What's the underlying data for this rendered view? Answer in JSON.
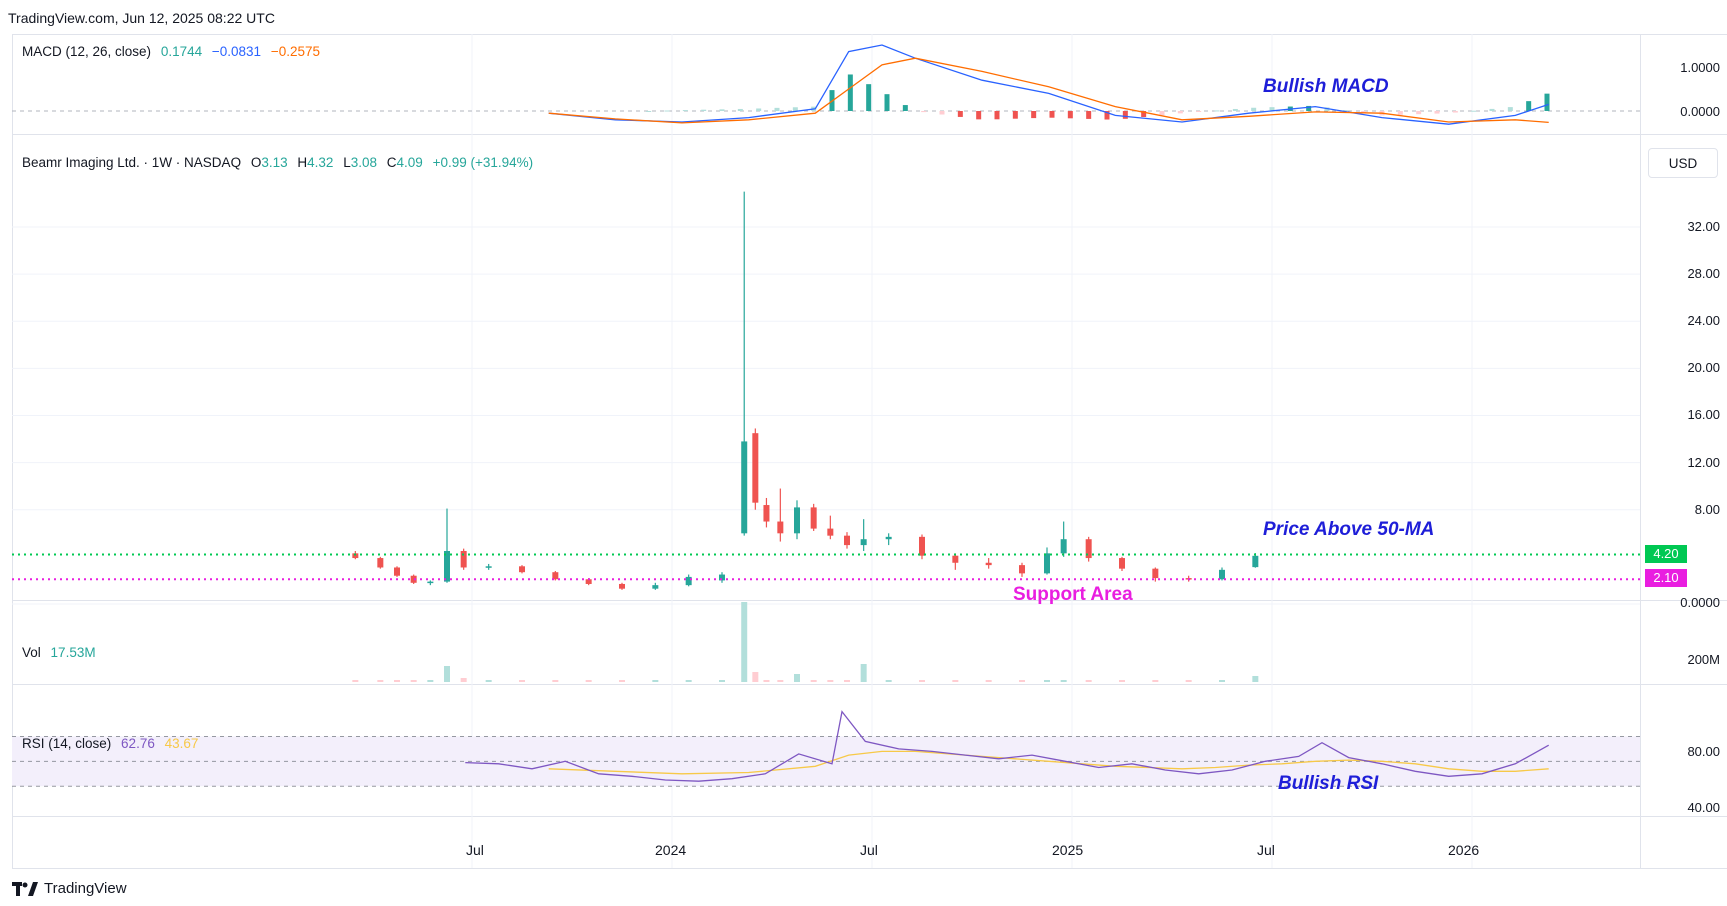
{
  "header": {
    "source": "TradingView.com, Jun 12, 2025 08:22 UTC"
  },
  "footer": {
    "brand": "TradingView",
    "logo_icon": "tradingview-logo-icon"
  },
  "currency_button": "USD",
  "colors": {
    "up": "#26a69a",
    "down": "#ef5350",
    "macd_line": "#2962ff",
    "signal_line": "#ff6d00",
    "rsi_line": "#7e57c2",
    "rsi_ma": "#f7c948",
    "ma_line": "#00c853",
    "support_line": "#e91ee0",
    "annotation": "#1e1ed8"
  },
  "macd": {
    "title": "MACD (12, 26, close)",
    "values": [
      "0.1744",
      "−0.0831",
      "−0.2575"
    ],
    "axis_ticks": [
      "1.0000",
      "0.0000"
    ],
    "annotation": "Bullish MACD"
  },
  "price": {
    "title": "Beamr Imaging Ltd. · 1W · NASDAQ",
    "o_label": "O",
    "o": "3.13",
    "h_label": "H",
    "h": "4.32",
    "l_label": "L",
    "l": "3.08",
    "c_label": "C",
    "c": "4.09",
    "change": "+0.99 (+31.94%)",
    "axis_ticks": [
      "32.00",
      "28.00",
      "24.00",
      "20.00",
      "16.00",
      "12.00",
      "8.00",
      "0.0000"
    ],
    "ma_tag": "4.20",
    "support_tag": "2.10",
    "annotation_ma": "Price Above 50-MA",
    "annotation_support": "Support Area"
  },
  "volume": {
    "title": "Vol",
    "value": "17.53M",
    "axis_ticks": [
      "200M"
    ]
  },
  "rsi": {
    "title": "RSI (14, close)",
    "values": [
      "62.76",
      "43.67"
    ],
    "axis_ticks": [
      "80.00",
      "40.00"
    ],
    "annotation": "Bullish RSI"
  },
  "time_axis": [
    "Jul",
    "2024",
    "Jul",
    "2025",
    "Jul",
    "2026"
  ],
  "chart_data": {
    "type": "candlestick",
    "interval": "1W",
    "symbol": "Beamr Imaging Ltd.",
    "exchange": "NASDAQ",
    "ylim": [
      0,
      35
    ],
    "x_range": [
      "2023-03",
      "2026-05"
    ],
    "candles": [
      {
        "x": "2023-03",
        "o": 4.3,
        "h": 4.5,
        "l": 3.8,
        "c": 3.9
      },
      {
        "x": "2023-04",
        "o": 3.9,
        "h": 4.0,
        "l": 3.0,
        "c": 3.1
      },
      {
        "x": "2023-04",
        "o": 3.1,
        "h": 3.2,
        "l": 2.3,
        "c": 2.4
      },
      {
        "x": "2023-05",
        "o": 2.4,
        "h": 2.5,
        "l": 1.7,
        "c": 1.8
      },
      {
        "x": "2023-05",
        "o": 1.8,
        "h": 2.0,
        "l": 1.6,
        "c": 1.9
      },
      {
        "x": "2023-06",
        "o": 1.9,
        "h": 8.1,
        "l": 1.8,
        "c": 4.5
      },
      {
        "x": "2023-06",
        "o": 4.5,
        "h": 4.7,
        "l": 2.9,
        "c": 3.1
      },
      {
        "x": "2023-07",
        "o": 3.1,
        "h": 3.4,
        "l": 2.9,
        "c": 3.2
      },
      {
        "x": "2023-08",
        "o": 3.2,
        "h": 3.3,
        "l": 2.6,
        "c": 2.7
      },
      {
        "x": "2023-09",
        "o": 2.7,
        "h": 2.8,
        "l": 2.0,
        "c": 2.1
      },
      {
        "x": "2023-10",
        "o": 2.1,
        "h": 2.2,
        "l": 1.6,
        "c": 1.7
      },
      {
        "x": "2023-11",
        "o": 1.7,
        "h": 1.8,
        "l": 1.2,
        "c": 1.3
      },
      {
        "x": "2023-12",
        "o": 1.3,
        "h": 1.8,
        "l": 1.2,
        "c": 1.6
      },
      {
        "x": "2024-01",
        "o": 1.6,
        "h": 2.5,
        "l": 1.5,
        "c": 2.3
      },
      {
        "x": "2024-02",
        "o": 2.0,
        "h": 2.7,
        "l": 1.8,
        "c": 2.5
      },
      {
        "x": "2024-03",
        "o": 6.0,
        "h": 35.0,
        "l": 5.8,
        "c": 13.8
      },
      {
        "x": "2024-03",
        "o": 14.5,
        "h": 14.9,
        "l": 8.0,
        "c": 8.6
      },
      {
        "x": "2024-03",
        "o": 8.4,
        "h": 9.0,
        "l": 6.5,
        "c": 7.0
      },
      {
        "x": "2024-04",
        "o": 7.0,
        "h": 9.8,
        "l": 5.3,
        "c": 6.0
      },
      {
        "x": "2024-04",
        "o": 6.0,
        "h": 8.8,
        "l": 5.5,
        "c": 8.2
      },
      {
        "x": "2024-05",
        "o": 8.2,
        "h": 8.5,
        "l": 6.2,
        "c": 6.4
      },
      {
        "x": "2024-05",
        "o": 6.4,
        "h": 7.5,
        "l": 5.5,
        "c": 5.8
      },
      {
        "x": "2024-06",
        "o": 5.8,
        "h": 6.1,
        "l": 4.7,
        "c": 5.0
      },
      {
        "x": "2024-06",
        "o": 5.0,
        "h": 7.2,
        "l": 4.5,
        "c": 5.5
      },
      {
        "x": "2024-07",
        "o": 5.5,
        "h": 6.0,
        "l": 5.0,
        "c": 5.7
      },
      {
        "x": "2024-08",
        "o": 5.7,
        "h": 5.9,
        "l": 3.8,
        "c": 4.1
      },
      {
        "x": "2024-09",
        "o": 4.1,
        "h": 4.3,
        "l": 2.9,
        "c": 3.5
      },
      {
        "x": "2024-10",
        "o": 3.5,
        "h": 3.9,
        "l": 3.0,
        "c": 3.3
      },
      {
        "x": "2024-11",
        "o": 3.3,
        "h": 3.5,
        "l": 2.3,
        "c": 2.6
      },
      {
        "x": "2024-12",
        "o": 2.6,
        "h": 4.8,
        "l": 2.5,
        "c": 4.3
      },
      {
        "x": "2024-12",
        "o": 4.3,
        "h": 7.0,
        "l": 4.0,
        "c": 5.5
      },
      {
        "x": "2025-01",
        "o": 5.5,
        "h": 5.7,
        "l": 3.6,
        "c": 3.9
      },
      {
        "x": "2025-02",
        "o": 3.9,
        "h": 4.0,
        "l": 2.8,
        "c": 3.0
      },
      {
        "x": "2025-03",
        "o": 3.0,
        "h": 3.1,
        "l": 1.9,
        "c": 2.2
      },
      {
        "x": "2025-04",
        "o": 2.2,
        "h": 2.4,
        "l": 1.9,
        "c": 2.1
      },
      {
        "x": "2025-05",
        "o": 2.1,
        "h": 3.1,
        "l": 2.0,
        "c": 2.9
      },
      {
        "x": "2025-06",
        "o": 3.13,
        "h": 4.32,
        "l": 3.08,
        "c": 4.09
      }
    ],
    "horizontal_lines": [
      {
        "value": 4.2,
        "label": "4.20",
        "style": "dotted",
        "color": "#00c853"
      },
      {
        "value": 2.1,
        "label": "2.10",
        "style": "dotted",
        "color": "#e91ee0"
      }
    ]
  }
}
